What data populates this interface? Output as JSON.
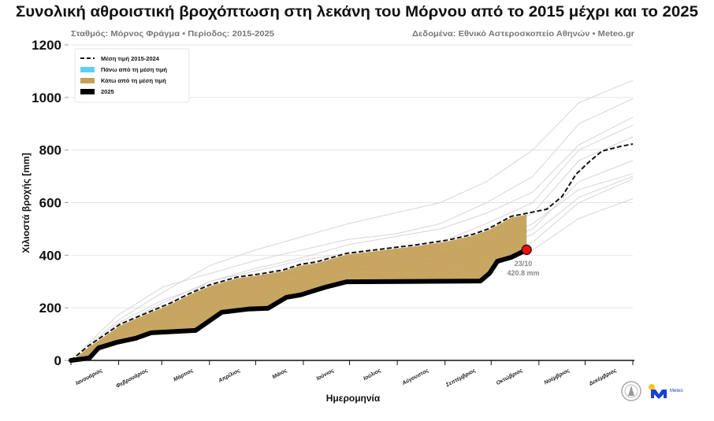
{
  "chart_data": {
    "type": "line",
    "title": "Συνολική αθροιστική βροχόπτωση στη λεκάνη του Μόρνου από το 2015 μέχρι και το 2025",
    "subtitle_left": "Σταθμός: Μόρνος Φράγμα • Περίοδος: 2015-2025",
    "subtitle_right": "Δεδομένα: Εθνικό Αστεροσκοπείο Αθηνών • Meteo.gr",
    "xlabel": "Ημερομηνία",
    "ylabel": "Χιλιοστά βροχής [mm]",
    "ylim": [
      0,
      1200
    ],
    "yticks": [
      "0",
      "200",
      "400",
      "600",
      "800",
      "1000",
      "1200"
    ],
    "xlim_day_of_year": [
      0,
      365
    ],
    "months": [
      "Ιανουάριος",
      "Φεβρουάριος",
      "Μάρτιος",
      "Απρίλιος",
      "Μάιος",
      "Ιούνιος",
      "Ιούλιος",
      "Αύγουστος",
      "Σεπτέμβριος",
      "Οκτώβριος",
      "Νοέμβριος",
      "Δεκέμβριος"
    ],
    "grid": true,
    "legend_placement": "top-left",
    "legend": [
      "Μέση τιμή 2015-2024",
      "Πάνω από τη μέση τιμή",
      "Κάτω από τη μέση τιμή",
      "2025"
    ],
    "colors": {
      "mean": "#111111",
      "above": "#5ed0f5",
      "below": "#c4a15a",
      "current": "#000000",
      "other_years": "#d6d6d6",
      "marker": "#ee1111"
    },
    "mean": {
      "name": "Μέση τιμή 2015-2024",
      "day": [
        0,
        11,
        32,
        49,
        65,
        77,
        90,
        108,
        123,
        138,
        149,
        159,
        179,
        200,
        225,
        245,
        261,
        271,
        286,
        294,
        309,
        319,
        328,
        337,
        345,
        357,
        365
      ],
      "mm": [
        0,
        54,
        138,
        180,
        219,
        254,
        287,
        317,
        329,
        344,
        365,
        374,
        407,
        422,
        440,
        458,
        479,
        500,
        548,
        557,
        575,
        623,
        707,
        757,
        796,
        814,
        823
      ]
    },
    "current_year": {
      "name": "2025",
      "day": [
        0,
        12,
        18,
        30,
        42,
        52,
        81,
        98,
        115,
        128,
        140,
        149,
        165,
        179,
        266,
        272,
        277,
        286,
        296
      ],
      "mm": [
        0,
        9,
        48,
        69,
        84,
        105,
        114,
        183,
        195,
        198,
        240,
        249,
        278,
        299,
        302,
        332,
        377,
        392,
        420.8
      ]
    },
    "other_years": {
      "day": [
        0,
        30,
        60,
        90,
        120,
        150,
        180,
        210,
        240,
        270,
        300,
        330,
        365
      ],
      "series": [
        [
          0,
          150,
          260,
          360,
          420,
          470,
          520,
          560,
          600,
          680,
          800,
          980,
          1065
        ],
        [
          0,
          170,
          280,
          330,
          380,
          420,
          460,
          480,
          520,
          600,
          700,
          900,
          995
        ],
        [
          0,
          110,
          200,
          300,
          350,
          390,
          440,
          470,
          500,
          560,
          640,
          820,
          925
        ],
        [
          0,
          90,
          180,
          260,
          300,
          340,
          380,
          420,
          450,
          520,
          600,
          800,
          895
        ],
        [
          0,
          130,
          220,
          300,
          340,
          380,
          410,
          430,
          450,
          480,
          560,
          760,
          850
        ],
        [
          0,
          80,
          150,
          230,
          270,
          310,
          340,
          360,
          380,
          430,
          500,
          680,
          760
        ],
        [
          0,
          120,
          210,
          270,
          300,
          330,
          360,
          380,
          400,
          440,
          520,
          650,
          710
        ],
        [
          0,
          140,
          230,
          290,
          320,
          340,
          360,
          370,
          380,
          410,
          480,
          620,
          700
        ],
        [
          0,
          100,
          170,
          220,
          260,
          290,
          320,
          340,
          360,
          400,
          450,
          600,
          690
        ],
        [
          0,
          60,
          130,
          200,
          240,
          280,
          300,
          310,
          320,
          350,
          420,
          540,
          615
        ]
      ]
    },
    "annotation": {
      "date": "23/10",
      "value": "420.8 mm"
    },
    "logo_text": "Meteo"
  }
}
